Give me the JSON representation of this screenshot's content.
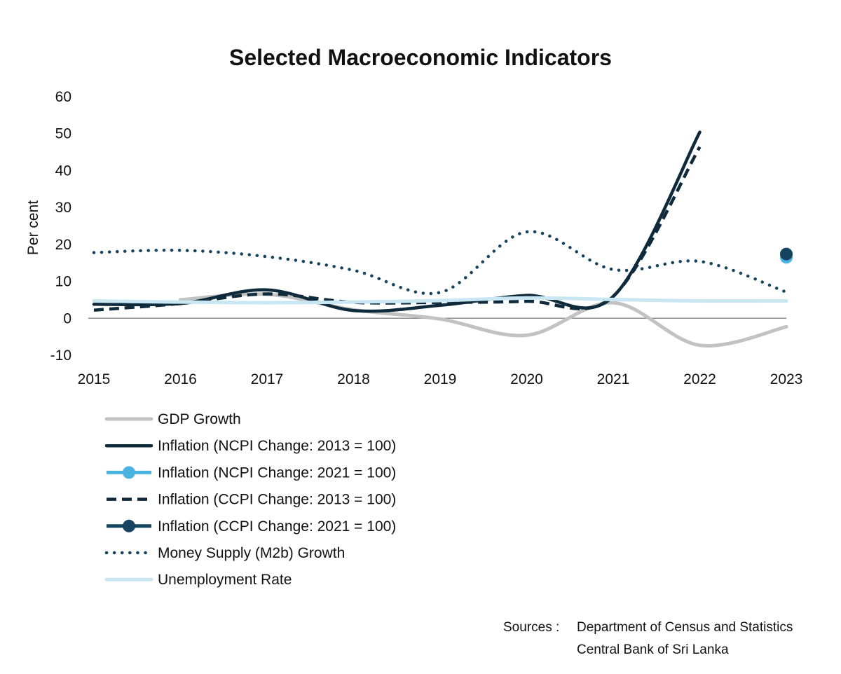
{
  "chart_data": {
    "type": "line",
    "title": "Selected Macroeconomic Indicators",
    "ylabel": "Per cent",
    "xlabel": "",
    "ylim": [
      -10,
      60
    ],
    "yticks": [
      60,
      50,
      40,
      30,
      20,
      10,
      0,
      -10
    ],
    "x": [
      2015,
      2016,
      2017,
      2018,
      2019,
      2020,
      2021,
      2022,
      2023
    ],
    "series": [
      {
        "name": "GDP Growth",
        "style": "solid",
        "color": "#c2c2c2",
        "x": [
          2016,
          2017,
          2018,
          2019,
          2020,
          2021,
          2022,
          2023
        ],
        "values": [
          5.0,
          6.5,
          2.3,
          -0.2,
          -4.6,
          4.2,
          -7.3,
          -2.3
        ]
      },
      {
        "name": "Inflation (NCPI Change: 2013 = 100)",
        "style": "solid",
        "color": "#0e2a3b",
        "x": [
          2015,
          2016,
          2017,
          2018,
          2019,
          2020,
          2021,
          2022
        ],
        "values": [
          3.8,
          4.0,
          7.7,
          2.1,
          3.5,
          6.2,
          5.9,
          50.4
        ]
      },
      {
        "name": "Inflation (NCPI Change: 2021 = 100)",
        "style": "marker",
        "color": "#4bb3e0",
        "x": [
          2023
        ],
        "values": [
          16.5
        ]
      },
      {
        "name": "Inflation (CCPI Change: 2013 = 100)",
        "style": "dashed",
        "color": "#0e2a3b",
        "x": [
          2015,
          2016,
          2017,
          2018,
          2019,
          2020,
          2021,
          2022
        ],
        "values": [
          2.2,
          4.0,
          6.6,
          4.3,
          4.3,
          4.6,
          6.0,
          46.4
        ]
      },
      {
        "name": "Inflation (CCPI Change: 2021 = 100)",
        "style": "marker",
        "color": "#16445f",
        "x": [
          2023
        ],
        "values": [
          17.4
        ]
      },
      {
        "name": "Money Supply (M2b) Growth",
        "style": "dotted",
        "color": "#16445f",
        "x": [
          2015,
          2016,
          2017,
          2018,
          2019,
          2020,
          2021,
          2022,
          2023
        ],
        "values": [
          17.8,
          18.4,
          16.7,
          13.0,
          7.0,
          23.4,
          13.2,
          15.4,
          7.1
        ]
      },
      {
        "name": "Unemployment Rate",
        "style": "solid",
        "color": "#c9e6f3",
        "x": [
          2015,
          2016,
          2017,
          2018,
          2019,
          2020,
          2021,
          2022,
          2023
        ],
        "values": [
          4.7,
          4.4,
          4.2,
          4.4,
          4.8,
          5.5,
          5.1,
          4.7,
          4.7
        ]
      }
    ],
    "legend_position": "bottom-left",
    "grid": false
  },
  "sources": {
    "label": "Sources :",
    "items": [
      "Department of Census and Statistics",
      "Central Bank of Sri Lanka"
    ]
  }
}
